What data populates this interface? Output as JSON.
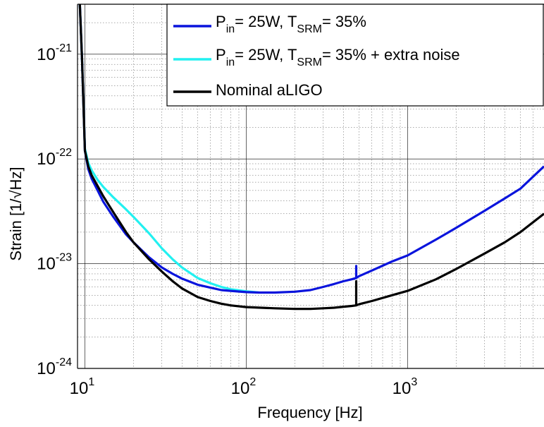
{
  "chart_data": {
    "type": "line",
    "xlabel": "Frequency [Hz]",
    "ylabel": "Strain [1/√Hz]",
    "xscale": "log",
    "yscale": "log",
    "xlim": [
      9,
      7000
    ],
    "ylim": [
      1e-24,
      3e-21
    ],
    "grid": "major and minor",
    "x_ticks": [
      {
        "value": 10,
        "base": "10",
        "exp": "1"
      },
      {
        "value": 100,
        "base": "10",
        "exp": "2"
      },
      {
        "value": 1000,
        "base": "10",
        "exp": "3"
      }
    ],
    "y_ticks": [
      {
        "value": 1e-24,
        "base": "10",
        "exp": "-24"
      },
      {
        "value": 1e-23,
        "base": "10",
        "exp": "-23"
      },
      {
        "value": 1e-22,
        "base": "10",
        "exp": "-22"
      },
      {
        "value": 1e-21,
        "base": "10",
        "exp": "-21"
      }
    ],
    "legend_position": "top-right",
    "series": [
      {
        "name": "P_in = 25W, T_SRM = 35%",
        "color": "#0a14dc",
        "x": [
          9.3,
          9.6,
          10,
          10.5,
          11,
          12,
          13,
          15,
          18,
          20,
          25,
          30,
          35,
          40,
          50,
          60,
          70,
          80,
          100,
          120,
          150,
          200,
          250,
          300,
          350,
          400,
          450,
          480,
          480,
          480,
          500,
          600,
          800,
          1000,
          1500,
          2000,
          3000,
          4000,
          5000,
          7000
        ],
        "y": [
          3e-21,
          9e-22,
          1.2e-22,
          8e-23,
          6.5e-23,
          5e-23,
          3.9e-23,
          2.8e-23,
          1.9e-23,
          1.6e-23,
          1.15e-23,
          9.2e-24,
          8e-24,
          7.2e-24,
          6.3e-24,
          5.9e-24,
          5.6e-24,
          5.5e-24,
          5.35e-24,
          5.3e-24,
          5.3e-24,
          5.4e-24,
          5.6e-24,
          6e-24,
          6.4e-24,
          6.8e-24,
          7.1e-24,
          7.3e-24,
          9.5e-24,
          7.3e-24,
          7.6e-24,
          8.6e-24,
          1.05e-23,
          1.2e-23,
          1.7e-23,
          2.2e-23,
          3.2e-23,
          4.2e-23,
          5.2e-23,
          8.5e-23
        ]
      },
      {
        "name": "P_in = 25W, T_SRM = 35% + extra noise",
        "color": "#22f0f0",
        "x": [
          9.3,
          9.6,
          10,
          10.5,
          11,
          12,
          13,
          15,
          18,
          20,
          25,
          30,
          35,
          40,
          50,
          60,
          70,
          80,
          100,
          120
        ],
        "y": [
          3e-21,
          9e-22,
          1.25e-22,
          9.2e-23,
          7.8e-23,
          6.3e-23,
          5.4e-23,
          4.3e-23,
          3.3e-23,
          2.8e-23,
          1.95e-23,
          1.4e-23,
          1.1e-23,
          9.2e-24,
          7.3e-24,
          6.5e-24,
          6e-24,
          5.7e-24,
          5.45e-24,
          5.3e-24
        ]
      },
      {
        "name": "Nominal aLIGO",
        "color": "#000000",
        "x": [
          9.3,
          9.6,
          10,
          10.5,
          11,
          12,
          13,
          15,
          18,
          20,
          25,
          30,
          35,
          40,
          50,
          60,
          70,
          80,
          100,
          150,
          200,
          250,
          300,
          350,
          400,
          450,
          480,
          480,
          480,
          500,
          600,
          800,
          1000,
          1500,
          2000,
          3000,
          4000,
          5000,
          7000
        ],
        "y": [
          3e-21,
          9e-22,
          1.2e-22,
          8.5e-23,
          7e-23,
          5.5e-23,
          4.4e-23,
          3.1e-23,
          2e-23,
          1.6e-23,
          1.1e-23,
          8.4e-24,
          6.8e-24,
          5.8e-24,
          4.8e-24,
          4.4e-24,
          4.15e-24,
          4e-24,
          3.85e-24,
          3.75e-24,
          3.7e-24,
          3.7e-24,
          3.75e-24,
          3.8e-24,
          3.88e-24,
          3.95e-24,
          4e-24,
          6.8e-24,
          4e-24,
          4.1e-24,
          4.4e-24,
          5e-24,
          5.5e-24,
          7.1e-24,
          8.9e-24,
          1.25e-23,
          1.6e-23,
          2e-23,
          3e-23
        ]
      }
    ],
    "legend": [
      {
        "color": "#0a14dc",
        "parts": [
          {
            "t": "P"
          },
          {
            "t": "in",
            "sub": true
          },
          {
            "t": "= 25W, T"
          },
          {
            "t": "SRM",
            "sub": true
          },
          {
            "t": "= 35%"
          }
        ]
      },
      {
        "color": "#22f0f0",
        "parts": [
          {
            "t": "P"
          },
          {
            "t": "in",
            "sub": true
          },
          {
            "t": "= 25W, T"
          },
          {
            "t": "SRM",
            "sub": true
          },
          {
            "t": "= 35% + extra noise"
          }
        ]
      },
      {
        "color": "#000000",
        "parts": [
          {
            "t": "Nominal aLIGO"
          }
        ]
      }
    ]
  }
}
